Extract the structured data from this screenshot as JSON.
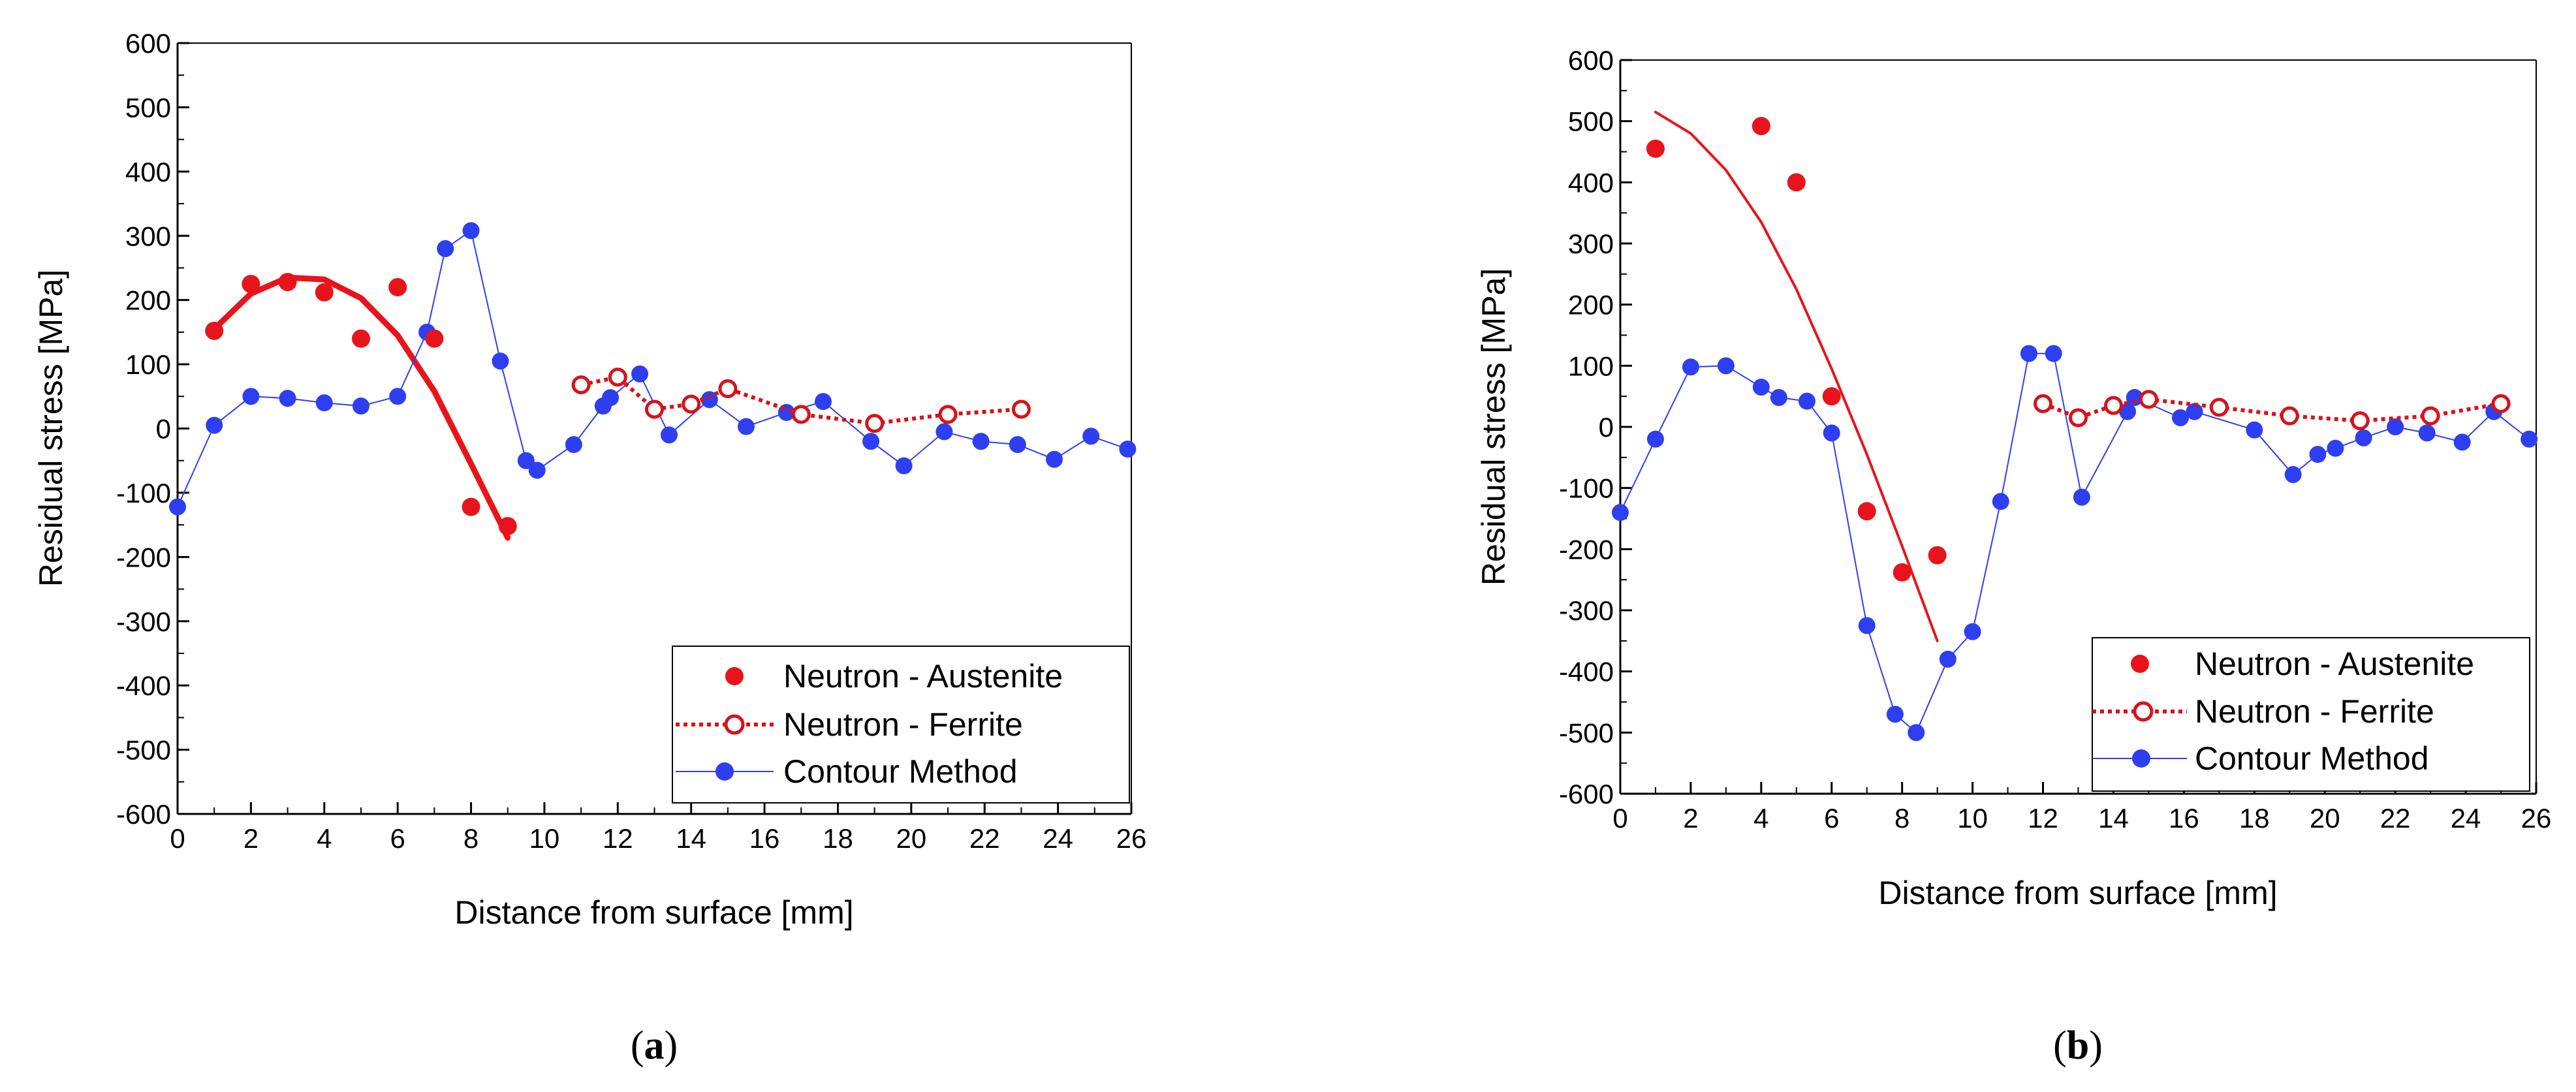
{
  "colors": {
    "austenite": "#e8141b",
    "ferrite": "#d6131b",
    "contour": "#2d3ff0",
    "axis": "#000000",
    "background": "#ffffff"
  },
  "chart_data": [
    {
      "panel": "a",
      "caption": {
        "open": "(",
        "letter": "a",
        "close": ")"
      },
      "type": "scatter",
      "xlabel": "Distance from surface [mm]",
      "ylabel": "Residual stress [MPa]",
      "xlim": [
        0,
        26
      ],
      "ylim": [
        -600,
        600
      ],
      "xticks": [
        0,
        2,
        4,
        6,
        8,
        10,
        12,
        14,
        16,
        18,
        20,
        22,
        24,
        26
      ],
      "yticks": [
        -600,
        -500,
        -400,
        -300,
        -200,
        -100,
        0,
        100,
        200,
        300,
        400,
        500,
        600
      ],
      "legend_position": "bottom-right",
      "series": [
        {
          "name": "Neutron - Austenite",
          "style": "filled-markers",
          "x": [
            1,
            2,
            3,
            4,
            5,
            6,
            7,
            8,
            9
          ],
          "y": [
            152,
            225,
            228,
            212,
            140,
            220,
            140,
            -122,
            -152
          ]
        },
        {
          "name": "Austenite polynomial fit",
          "style": "fit-line",
          "in_legend": false,
          "x": [
            1,
            2,
            3,
            4,
            5,
            6,
            7,
            8,
            9
          ],
          "y": [
            155,
            210,
            235,
            232,
            203,
            145,
            58,
            -55,
            -170
          ]
        },
        {
          "name": "Neutron - Ferrite",
          "style": "dotted-open-markers",
          "x": [
            11,
            12,
            13,
            14,
            15,
            17,
            19,
            21,
            23
          ],
          "y": [
            68,
            80,
            30,
            38,
            62,
            22,
            8,
            22,
            30
          ]
        },
        {
          "name": "Contour Method",
          "style": "thin-line-filled-markers",
          "x": [
            0,
            1,
            2,
            3,
            4,
            5,
            6,
            6.8,
            7.3,
            8.0,
            8.8,
            9.5,
            9.8,
            10.8,
            11.6,
            11.8,
            12.6,
            13.4,
            14.5,
            15.5,
            16.6,
            17.6,
            18.9,
            19.8,
            20.9,
            21.9,
            22.9,
            23.9,
            24.9,
            25.9
          ],
          "y": [
            -122,
            5,
            50,
            47,
            40,
            35,
            50,
            150,
            280,
            308,
            105,
            -50,
            -65,
            -25,
            35,
            48,
            85,
            -10,
            45,
            3,
            25,
            42,
            -20,
            -58,
            -5,
            -20,
            -25,
            -48,
            -12,
            -32
          ]
        }
      ]
    },
    {
      "panel": "b",
      "caption": {
        "open": "(",
        "letter": "b",
        "close": ")"
      },
      "type": "scatter",
      "xlabel": "Distance from surface [mm]",
      "ylabel": "Residual stress [MPa]",
      "xlim": [
        0,
        26
      ],
      "ylim": [
        -600,
        600
      ],
      "xticks": [
        0,
        2,
        4,
        6,
        8,
        10,
        12,
        14,
        16,
        18,
        20,
        22,
        24,
        26
      ],
      "yticks": [
        -600,
        -500,
        -400,
        -300,
        -200,
        -100,
        0,
        100,
        200,
        300,
        400,
        500,
        600
      ],
      "legend_position": "bottom-right",
      "series": [
        {
          "name": "Neutron - Austenite",
          "style": "filled-markers",
          "x": [
            1,
            4,
            5,
            6,
            7,
            8,
            9
          ],
          "y": [
            455,
            492,
            400,
            50,
            -138,
            -238,
            -210
          ]
        },
        {
          "name": "Austenite polynomial fit",
          "style": "thin-fit-line",
          "in_legend": false,
          "x": [
            1,
            2,
            3,
            4,
            5,
            6,
            7,
            8,
            9
          ],
          "y": [
            515,
            480,
            420,
            335,
            225,
            95,
            -45,
            -195,
            -350
          ]
        },
        {
          "name": "Neutron - Ferrite",
          "style": "dotted-open-markers",
          "x": [
            12,
            13,
            14,
            15,
            17,
            19,
            21,
            23,
            25
          ],
          "y": [
            38,
            15,
            35,
            45,
            32,
            18,
            10,
            18,
            38
          ]
        },
        {
          "name": "Contour Method",
          "style": "thin-line-filled-markers",
          "x": [
            0,
            1,
            2,
            3,
            4,
            4.5,
            5.3,
            6.0,
            7.0,
            7.8,
            8.4,
            9.3,
            10.0,
            10.8,
            11.6,
            12.3,
            13.1,
            14.4,
            14.6,
            15.9,
            16.3,
            18.0,
            19.1,
            19.8,
            20.3,
            21.1,
            22.0,
            22.9,
            23.9,
            24.8,
            25.8
          ],
          "y": [
            -140,
            -20,
            98,
            100,
            65,
            48,
            42,
            -10,
            -325,
            -470,
            -500,
            -380,
            -335,
            -122,
            120,
            120,
            -115,
            25,
            48,
            15,
            25,
            -5,
            -78,
            -45,
            -35,
            -18,
            0,
            -10,
            -25,
            25,
            -20
          ]
        }
      ]
    }
  ]
}
